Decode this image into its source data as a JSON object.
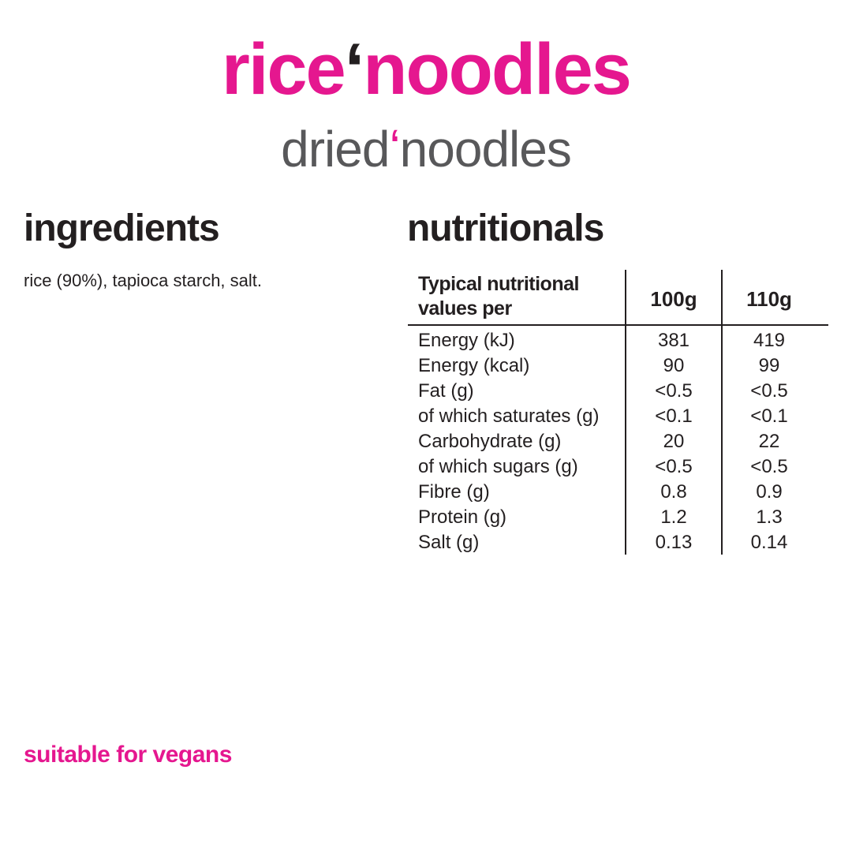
{
  "header": {
    "title_left": "rice",
    "title_apostrophe": "ʻ",
    "title_right": "noodles",
    "subtitle_left": "dried",
    "subtitle_apostrophe": "ʻ",
    "subtitle_right": "noodles"
  },
  "ingredients": {
    "heading": "ingredients",
    "text": "rice (90%), tapioca starch, salt."
  },
  "nutritionals": {
    "heading": "nutritionals",
    "columns": [
      "Typical nutritional values per",
      "100g",
      "110g"
    ],
    "header_line1": "Typical nutritional",
    "header_line2": "values per",
    "rows": [
      {
        "name": "Energy (kJ)",
        "per100": "381",
        "per110": "419"
      },
      {
        "name": "Energy (kcal)",
        "per100": "90",
        "per110": "99"
      },
      {
        "name": "Fat (g)",
        "per100": "<0.5",
        "per110": "<0.5"
      },
      {
        "name": "of which saturates (g)",
        "per100": "<0.1",
        "per110": "<0.1"
      },
      {
        "name": "Carbohydrate (g)",
        "per100": "20",
        "per110": "22"
      },
      {
        "name": "of which sugars (g)",
        "per100": "<0.5",
        "per110": "<0.5"
      },
      {
        "name": "Fibre (g)",
        "per100": "0.8",
        "per110": "0.9"
      },
      {
        "name": "Protein (g)",
        "per100": "1.2",
        "per110": "1.3"
      },
      {
        "name": "Salt (g)",
        "per100": "0.13",
        "per110": "0.14"
      }
    ]
  },
  "footer": {
    "vegan_note": "suitable for vegans"
  },
  "colors": {
    "brand_pink": "#e5178f",
    "text_dark": "#231f20",
    "subtitle_gray": "#58585a"
  }
}
